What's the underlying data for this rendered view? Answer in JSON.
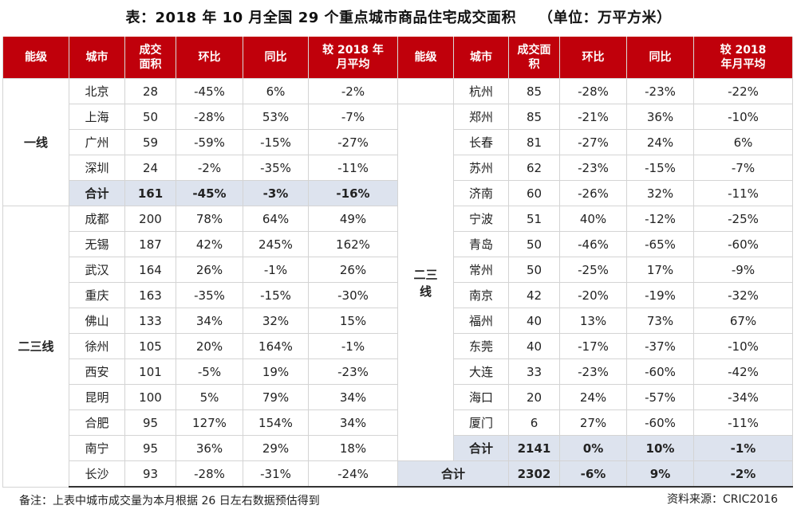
{
  "title": "表：2018 年 10 月全国 29 个重点城市商品住宅成交面积",
  "unit": "（单位：万平方米）",
  "headers": [
    "能级",
    "城市",
    "成交面积",
    "环比",
    "同比",
    "较 2018 年月平均"
  ],
  "headers_display": {
    "tier": "能级",
    "city": "城市",
    "area_l1": "成交",
    "area_l2": "面积",
    "area_r_l1": "成交面",
    "area_r_l2": "积",
    "mom": "环比",
    "yoy": "同比",
    "avg_l1": "较 2018 年",
    "avg_l2": "月平均",
    "avg_r_l1": "较 2018",
    "avg_r_l2": "年月平均"
  },
  "left": {
    "tier1_label": "一线",
    "tier1": [
      {
        "city": "北京",
        "area": "28",
        "mom": "-45%",
        "yoy": "6%",
        "avg": "-2%"
      },
      {
        "city": "上海",
        "area": "50",
        "mom": "-28%",
        "yoy": "53%",
        "avg": "-7%"
      },
      {
        "city": "广州",
        "area": "59",
        "mom": "-59%",
        "yoy": "-15%",
        "avg": "-27%"
      },
      {
        "city": "深圳",
        "area": "24",
        "mom": "-2%",
        "yoy": "-35%",
        "avg": "-11%"
      }
    ],
    "tier1_total": {
      "city": "合计",
      "area": "161",
      "mom": "-45%",
      "yoy": "-3%",
      "avg": "-16%"
    },
    "tier23_label": "二三线",
    "tier23": [
      {
        "city": "成都",
        "area": "200",
        "mom": "78%",
        "yoy": "64%",
        "avg": "49%"
      },
      {
        "city": "无锡",
        "area": "187",
        "mom": "42%",
        "yoy": "245%",
        "avg": "162%"
      },
      {
        "city": "武汉",
        "area": "164",
        "mom": "26%",
        "yoy": "-1%",
        "avg": "26%"
      },
      {
        "city": "重庆",
        "area": "163",
        "mom": "-35%",
        "yoy": "-15%",
        "avg": "-30%"
      },
      {
        "city": "佛山",
        "area": "133",
        "mom": "34%",
        "yoy": "32%",
        "avg": "15%"
      },
      {
        "city": "徐州",
        "area": "105",
        "mom": "20%",
        "yoy": "164%",
        "avg": "-1%"
      },
      {
        "city": "西安",
        "area": "101",
        "mom": "-5%",
        "yoy": "19%",
        "avg": "-23%"
      },
      {
        "city": "昆明",
        "area": "100",
        "mom": "5%",
        "yoy": "79%",
        "avg": "34%"
      },
      {
        "city": "合肥",
        "area": "95",
        "mom": "127%",
        "yoy": "154%",
        "avg": "34%"
      },
      {
        "city": "南宁",
        "area": "95",
        "mom": "36%",
        "yoy": "29%",
        "avg": "18%"
      },
      {
        "city": "长沙",
        "area": "93",
        "mom": "-28%",
        "yoy": "-31%",
        "avg": "-24%"
      }
    ]
  },
  "right": {
    "tier23_label_l1": "二三",
    "tier23_label_l2": "线",
    "rows": [
      {
        "city": "杭州",
        "area": "85",
        "mom": "-28%",
        "yoy": "-23%",
        "avg": "-22%"
      },
      {
        "city": "郑州",
        "area": "85",
        "mom": "-21%",
        "yoy": "36%",
        "avg": "-10%"
      },
      {
        "city": "长春",
        "area": "81",
        "mom": "-27%",
        "yoy": "24%",
        "avg": "6%"
      },
      {
        "city": "苏州",
        "area": "62",
        "mom": "-23%",
        "yoy": "-15%",
        "avg": "-7%"
      },
      {
        "city": "济南",
        "area": "60",
        "mom": "-26%",
        "yoy": "32%",
        "avg": "-11%"
      },
      {
        "city": "宁波",
        "area": "51",
        "mom": "40%",
        "yoy": "-12%",
        "avg": "-25%"
      },
      {
        "city": "青岛",
        "area": "50",
        "mom": "-46%",
        "yoy": "-65%",
        "avg": "-60%"
      },
      {
        "city": "常州",
        "area": "50",
        "mom": "-25%",
        "yoy": "17%",
        "avg": "-9%"
      },
      {
        "city": "南京",
        "area": "42",
        "mom": "-20%",
        "yoy": "-19%",
        "avg": "-32%"
      },
      {
        "city": "福州",
        "area": "40",
        "mom": "13%",
        "yoy": "73%",
        "avg": "67%"
      },
      {
        "city": "东莞",
        "area": "40",
        "mom": "-17%",
        "yoy": "-37%",
        "avg": "-10%"
      },
      {
        "city": "大连",
        "area": "33",
        "mom": "-23%",
        "yoy": "-60%",
        "avg": "-42%"
      },
      {
        "city": "海口",
        "area": "20",
        "mom": "24%",
        "yoy": "-57%",
        "avg": "-34%"
      },
      {
        "city": "厦门",
        "area": "6",
        "mom": "27%",
        "yoy": "-60%",
        "avg": "-11%"
      }
    ],
    "tier23_total": {
      "city": "合计",
      "area": "2141",
      "mom": "0%",
      "yoy": "10%",
      "avg": "-1%"
    },
    "grand_total": {
      "label": "合计",
      "area": "2302",
      "mom": "-6%",
      "yoy": "9%",
      "avg": "-2%"
    }
  },
  "note": "备注：上表中城市成交量为本月根据 26 日左右数据预估得到",
  "source": "资料来源：CRIC2016",
  "colors": {
    "header_bg": "#c0000b",
    "header_text": "#ffffff",
    "highlight_bg": "#dde3ee"
  }
}
